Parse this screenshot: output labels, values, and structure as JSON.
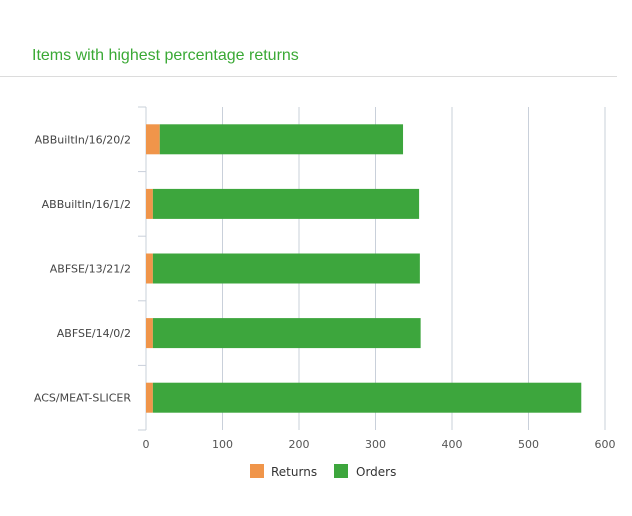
{
  "panel": {
    "title": "Items with highest percentage returns"
  },
  "chart_data": {
    "type": "bar",
    "orientation": "horizontal",
    "stacked": true,
    "categories": [
      "ABBuiltIn/16/20/2",
      "ABBuiltIn/16/1/2",
      "ABFSE/13/21/2",
      "ABFSE/14/0/2",
      "ACS/MEAT-SLICER"
    ],
    "series": [
      {
        "name": "Returns",
        "color": "#f0954a",
        "values": [
          18,
          9,
          9,
          9,
          9
        ]
      },
      {
        "name": "Orders",
        "color": "#3da63d",
        "values": [
          318,
          348,
          349,
          350,
          560
        ]
      }
    ],
    "x_ticks": [
      "0",
      "100",
      "200",
      "300",
      "400",
      "500",
      "600"
    ],
    "xlim": [
      0,
      600
    ],
    "grid": true,
    "legend_position": "bottom-center"
  }
}
